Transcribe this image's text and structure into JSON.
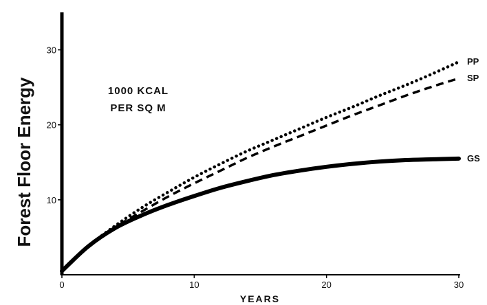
{
  "chart_data": {
    "type": "line",
    "title": "",
    "xlabel": "YEARS",
    "ylabel": "Forest Floor Energy",
    "annotation": [
      "1000 KCAL",
      "PER SQ M"
    ],
    "xlim": [
      0,
      30
    ],
    "ylim": [
      0,
      35
    ],
    "xticks": [
      0,
      10,
      20,
      30
    ],
    "yticks": [
      10,
      20,
      30
    ],
    "grid": false,
    "legend": "labels at line ends (right)",
    "series": [
      {
        "name": "PP",
        "style": "dotted",
        "x": [
          0,
          2,
          4,
          6,
          8,
          10,
          12,
          14,
          16,
          18,
          20,
          22,
          24,
          26,
          28,
          30
        ],
        "y": [
          0.5,
          3.8,
          6.5,
          8.9,
          11.0,
          13.0,
          14.8,
          16.5,
          18.0,
          19.5,
          21.0,
          22.4,
          23.9,
          25.3,
          26.8,
          28.4
        ]
      },
      {
        "name": "SP",
        "style": "dashed",
        "x": [
          0,
          2,
          4,
          6,
          8,
          10,
          12,
          14,
          16,
          18,
          20,
          22,
          24,
          26,
          28,
          30
        ],
        "y": [
          0.5,
          3.8,
          6.3,
          8.4,
          10.4,
          12.2,
          13.9,
          15.6,
          17.1,
          18.5,
          19.9,
          21.3,
          22.6,
          23.9,
          25.1,
          26.2
        ]
      },
      {
        "name": "GS",
        "style": "solid-thick",
        "x": [
          0,
          2,
          4,
          6,
          8,
          10,
          12,
          14,
          16,
          18,
          20,
          22,
          24,
          26,
          28,
          30
        ],
        "y": [
          0.5,
          3.8,
          6.2,
          7.9,
          9.3,
          10.5,
          11.6,
          12.5,
          13.3,
          13.9,
          14.4,
          14.8,
          15.1,
          15.3,
          15.4,
          15.5
        ]
      }
    ]
  }
}
